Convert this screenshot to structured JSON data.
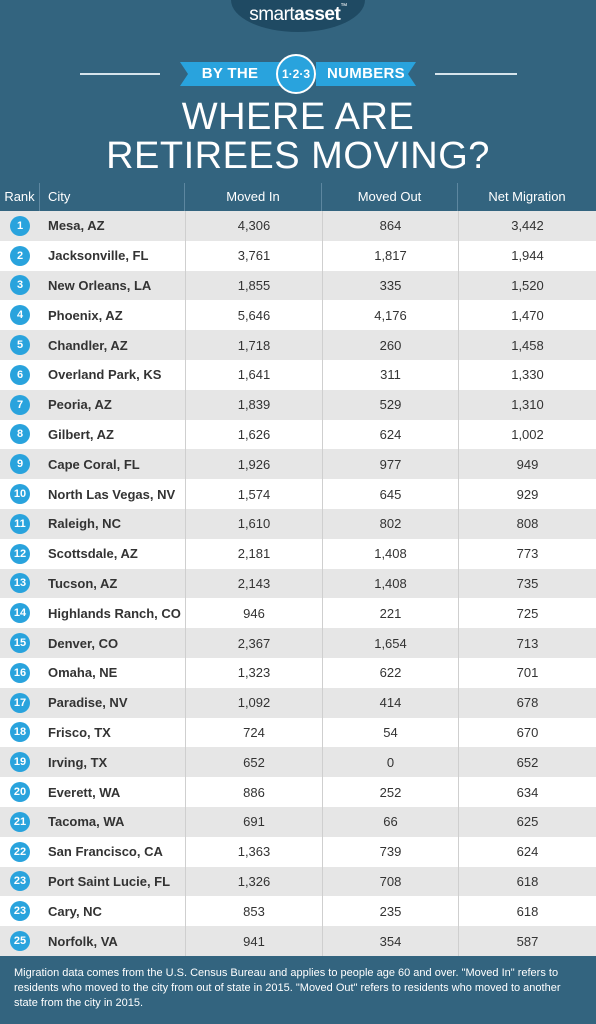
{
  "brand": {
    "name_light": "smart",
    "name_bold": "asset",
    "mark": "™"
  },
  "banner": {
    "left": "BY THE",
    "badge": "1·2·3",
    "right": "NUMBERS"
  },
  "title_line1": "WHERE ARE",
  "title_line2": "RETIREES MOVING?",
  "note": "Migration data comes from the U.S. Census Bureau and applies to people age 60 and over. \"Moved In\" refers to residents who moved to the city from out of state in 2015. \"Moved Out\" refers to residents who moved to another state from the city in 2015.",
  "colors": {
    "background": "#33647f",
    "accent": "#29a3dd",
    "row_alt": "#e6e6e6"
  },
  "chart_data": {
    "type": "table",
    "columns": [
      "Rank",
      "City",
      "Moved In",
      "Moved Out",
      "Net Migration"
    ],
    "rows": [
      {
        "rank": "1",
        "city": "Mesa, AZ",
        "moved_in": "4,306",
        "moved_out": "864",
        "net": "3,442"
      },
      {
        "rank": "2",
        "city": "Jacksonville, FL",
        "moved_in": "3,761",
        "moved_out": "1,817",
        "net": "1,944"
      },
      {
        "rank": "3",
        "city": "New Orleans, LA",
        "moved_in": "1,855",
        "moved_out": "335",
        "net": "1,520"
      },
      {
        "rank": "4",
        "city": "Phoenix, AZ",
        "moved_in": "5,646",
        "moved_out": "4,176",
        "net": "1,470"
      },
      {
        "rank": "5",
        "city": "Chandler, AZ",
        "moved_in": "1,718",
        "moved_out": "260",
        "net": "1,458"
      },
      {
        "rank": "6",
        "city": "Overland Park, KS",
        "moved_in": "1,641",
        "moved_out": "311",
        "net": "1,330"
      },
      {
        "rank": "7",
        "city": "Peoria, AZ",
        "moved_in": "1,839",
        "moved_out": "529",
        "net": "1,310"
      },
      {
        "rank": "8",
        "city": "Gilbert, AZ",
        "moved_in": "1,626",
        "moved_out": "624",
        "net": "1,002"
      },
      {
        "rank": "9",
        "city": "Cape Coral, FL",
        "moved_in": "1,926",
        "moved_out": "977",
        "net": "949"
      },
      {
        "rank": "10",
        "city": "North Las Vegas, NV",
        "moved_in": "1,574",
        "moved_out": "645",
        "net": "929"
      },
      {
        "rank": "11",
        "city": "Raleigh, NC",
        "moved_in": "1,610",
        "moved_out": "802",
        "net": "808"
      },
      {
        "rank": "12",
        "city": "Scottsdale, AZ",
        "moved_in": "2,181",
        "moved_out": "1,408",
        "net": "773"
      },
      {
        "rank": "13",
        "city": "Tucson, AZ",
        "moved_in": "2,143",
        "moved_out": "1,408",
        "net": "735"
      },
      {
        "rank": "14",
        "city": "Highlands Ranch, CO",
        "moved_in": "946",
        "moved_out": "221",
        "net": "725"
      },
      {
        "rank": "15",
        "city": "Denver, CO",
        "moved_in": "2,367",
        "moved_out": "1,654",
        "net": "713"
      },
      {
        "rank": "16",
        "city": "Omaha, NE",
        "moved_in": "1,323",
        "moved_out": "622",
        "net": "701"
      },
      {
        "rank": "17",
        "city": "Paradise, NV",
        "moved_in": "1,092",
        "moved_out": "414",
        "net": "678"
      },
      {
        "rank": "18",
        "city": "Frisco, TX",
        "moved_in": "724",
        "moved_out": "54",
        "net": "670"
      },
      {
        "rank": "19",
        "city": "Irving, TX",
        "moved_in": "652",
        "moved_out": "0",
        "net": "652"
      },
      {
        "rank": "20",
        "city": "Everett, WA",
        "moved_in": "886",
        "moved_out": "252",
        "net": "634"
      },
      {
        "rank": "21",
        "city": "Tacoma, WA",
        "moved_in": "691",
        "moved_out": "66",
        "net": "625"
      },
      {
        "rank": "22",
        "city": "San Francisco, CA",
        "moved_in": "1,363",
        "moved_out": "739",
        "net": "624"
      },
      {
        "rank": "23",
        "city": "Port Saint Lucie, FL",
        "moved_in": "1,326",
        "moved_out": "708",
        "net": "618"
      },
      {
        "rank": "23",
        "city": "Cary, NC",
        "moved_in": "853",
        "moved_out": "235",
        "net": "618"
      },
      {
        "rank": "25",
        "city": "Norfolk, VA",
        "moved_in": "941",
        "moved_out": "354",
        "net": "587"
      }
    ]
  }
}
